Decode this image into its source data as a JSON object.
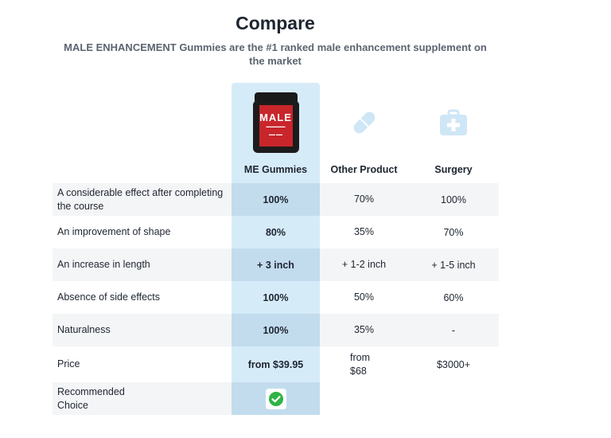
{
  "header": {
    "title": "Compare",
    "subtitle": "MALE ENHANCEMENT Gummies are the #1 ranked male enhancement supplement on the market"
  },
  "columns": [
    {
      "label": "ME Gummies",
      "icon": "product-jar-image"
    },
    {
      "label": "Other Product",
      "icon": "pill-icon"
    },
    {
      "label": "Surgery",
      "icon": "medical-kit-icon"
    }
  ],
  "product_image": {
    "brand_text": "MALE"
  },
  "rows": [
    {
      "label": "A considerable effect after completing the course",
      "me": "100%",
      "other": "70%",
      "surgery": "100%"
    },
    {
      "label": "An improvement of shape",
      "me": "80%",
      "other": "35%",
      "surgery": "70%"
    },
    {
      "label": "An increase in length",
      "me": "+ 3 inch",
      "other": "+ 1-2 inch",
      "surgery": "+ 1-5 inch"
    },
    {
      "label": "Absence of side effects",
      "me": "100%",
      "other": "50%",
      "surgery": "60%"
    },
    {
      "label": "Naturalness",
      "me": "100%",
      "other": "35%",
      "surgery": "-"
    },
    {
      "label": "Price",
      "me": "from $39.95",
      "other": "from $68",
      "surgery": "$3000+"
    },
    {
      "label": "Recommended Choice",
      "me": "check-icon",
      "other": "",
      "surgery": ""
    }
  ],
  "colors": {
    "highlight": "#d6ebf8",
    "highlight_shade": "#c2dcee",
    "row_shade": "#f4f5f6",
    "icon_blue": "#cfe6f6",
    "check_green": "#2fb344"
  }
}
